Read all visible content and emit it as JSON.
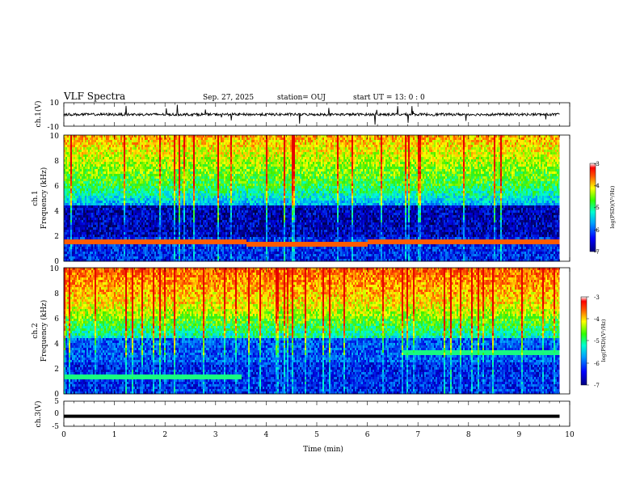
{
  "header": {
    "title": "VLF Spectra",
    "date": "Sep. 27, 2025",
    "station": "station= OUJ",
    "start": "start  UT =   13: 0  : 0"
  },
  "chart_data": [
    {
      "type": "line",
      "ylabel": "ch.1(V)",
      "ylim": [
        -10,
        10
      ],
      "yticks": [
        "10",
        "-10"
      ],
      "series": [
        {
          "baseline": 0
        }
      ]
    },
    {
      "type": "heatmap",
      "ylabel1": "ch.1",
      "ylabel2": "Frequency (kHz)",
      "ylim": [
        0,
        10
      ],
      "yticks": [
        "0",
        "2",
        "4",
        "6",
        "8",
        "10"
      ],
      "colorbar": {
        "label": "log(PSD)(V²/Hz)",
        "ticks": [
          "-3",
          "-4",
          "-5",
          "-6",
          "-7"
        ],
        "range": [
          -7,
          -3
        ]
      },
      "bands": [
        {
          "f": 1.6,
          "x0": 0.0,
          "x1": 3.6
        },
        {
          "f": 1.3,
          "x0": 3.6,
          "x1": 6.0
        },
        {
          "f": 1.5,
          "x0": 6.0,
          "x1": 7.8
        },
        {
          "f": 1.5,
          "x0": 7.8,
          "x1": 9.8
        }
      ]
    },
    {
      "type": "heatmap",
      "ylabel1": "ch.2",
      "ylabel2": "Frequency (kHz)",
      "ylim": [
        0,
        10
      ],
      "yticks": [
        "0",
        "2",
        "4",
        "6",
        "8",
        "10"
      ],
      "colorbar": {
        "label": "log(PSD)(V²/Hz)",
        "ticks": [
          "-3",
          "-4",
          "-5",
          "-6",
          "-7"
        ],
        "range": [
          -7,
          -3
        ]
      },
      "bands": [
        {
          "f": 3.3,
          "x0": 6.7,
          "x1": 9.8
        },
        {
          "f": 1.4,
          "x0": 0.0,
          "x1": 3.5
        }
      ]
    },
    {
      "type": "line",
      "ylabel": "ch.3(V)",
      "ylim": [
        -5,
        5
      ],
      "yticks": [
        "5",
        "0",
        "-5"
      ],
      "xlabel": "Time (min)",
      "xlim": [
        0,
        10
      ],
      "xticks": [
        "0",
        "1",
        "2",
        "3",
        "4",
        "5",
        "6",
        "7",
        "8",
        "9",
        "10"
      ],
      "series": [
        {
          "value": -1
        }
      ]
    }
  ],
  "colors": {
    "blue": "#0000c8",
    "dark": "#000040",
    "cyan": "#00d0ff",
    "green": "#30e000",
    "yellow": "#f0f000",
    "red": "#e00000"
  }
}
